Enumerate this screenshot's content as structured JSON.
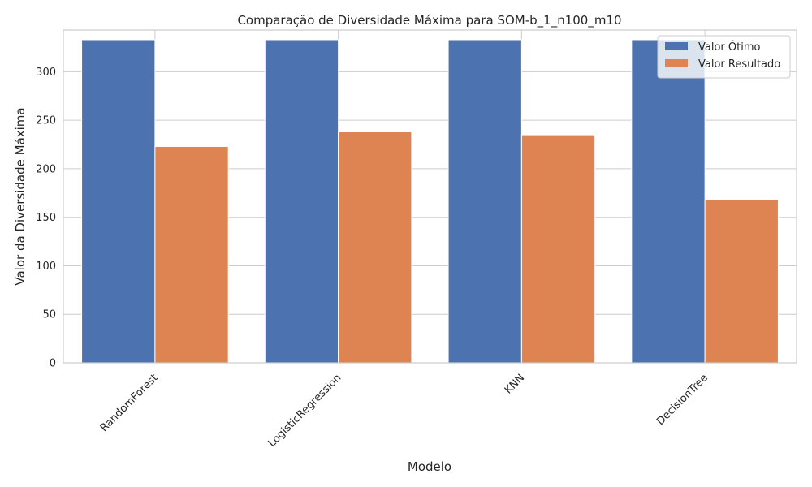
{
  "chart_data": {
    "type": "bar",
    "title": "Comparação de Diversidade Máxima para SOM-b_1_n100_m10",
    "xlabel": "Modelo",
    "ylabel": "Valor da Diversidade Máxima",
    "categories": [
      "RandomForest",
      "LogisticRegression",
      "KNN",
      "DecisionTree"
    ],
    "series": [
      {
        "name": "Valor Ótimo",
        "values": [
          333,
          333,
          333,
          333
        ],
        "color": "#4c72b0"
      },
      {
        "name": "Valor Resultado",
        "values": [
          223,
          238,
          235,
          168
        ],
        "color": "#dd8452"
      }
    ],
    "ylim": [
      0,
      343
    ],
    "yticks": [
      0,
      50,
      100,
      150,
      200,
      250,
      300
    ],
    "grid": true,
    "legend_position": "top-right",
    "xtick_rotation": 45
  }
}
